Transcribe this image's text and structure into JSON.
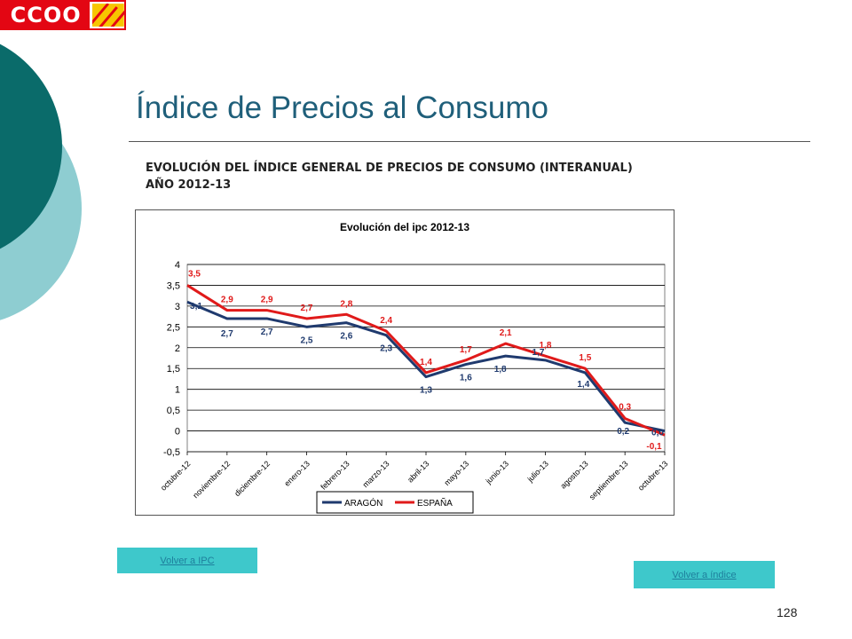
{
  "logo": {
    "text": "CCOO"
  },
  "page": {
    "title": "Índice de Precios al Consumo",
    "subtitle_line1": "EVOLUCIÓN DEL ÍNDICE GENERAL DE PRECIOS DE CONSUMO (INTERANUAL)",
    "subtitle_line2": "AÑO 2012-13",
    "page_number": "128"
  },
  "buttons": {
    "volver_ipc": "Volver a IPC",
    "volver_indice": "Volver a índice"
  },
  "colors": {
    "dark_teal": "#0a6b6a",
    "light_teal": "#8ecdd1",
    "button_bg": "#3ec8cb",
    "aragon": "#1f3a6e",
    "espana": "#e01a1a",
    "logo_red": "#e30613"
  },
  "chart_data": {
    "type": "line",
    "title": "Evolución del ipc 2012-13",
    "categories": [
      "octubre-12",
      "noviembre-12",
      "diciembre-12",
      "enero-13",
      "febrero-13",
      "marzo-13",
      "abril-13",
      "mayo-13",
      "junio-13",
      "julio-13",
      "agosto-13",
      "septiembre-13",
      "octubre-13"
    ],
    "series": [
      {
        "name": "ARAGÓN",
        "color": "#1f3a6e",
        "values": [
          3.1,
          2.7,
          2.7,
          2.5,
          2.6,
          2.3,
          1.3,
          1.6,
          1.8,
          1.7,
          1.4,
          0.2,
          0.0
        ],
        "labels": [
          "3,1",
          "2,7",
          "2,7",
          "2,5",
          "2,6",
          "2,3",
          "1,3",
          "1,6",
          "1,8",
          "1,7",
          "1,4",
          "0,2",
          "0,0"
        ]
      },
      {
        "name": "ESPAÑA",
        "color": "#e01a1a",
        "values": [
          3.5,
          2.9,
          2.9,
          2.7,
          2.8,
          2.4,
          1.4,
          1.7,
          2.1,
          1.8,
          1.5,
          0.3,
          -0.1
        ],
        "labels": [
          "3,5",
          "2,9",
          "2,9",
          "2,7",
          "2,8",
          "2,4",
          "1,4",
          "1,7",
          "2,1",
          "1,8",
          "1,5",
          "0,3",
          "-0,1"
        ]
      }
    ],
    "yticks": [
      "4",
      "3,5",
      "3",
      "2,5",
      "2",
      "1,5",
      "1",
      "0,5",
      "0",
      "-0,5"
    ],
    "ylim": [
      -0.5,
      4
    ],
    "grid": true,
    "legend_position": "bottom"
  }
}
